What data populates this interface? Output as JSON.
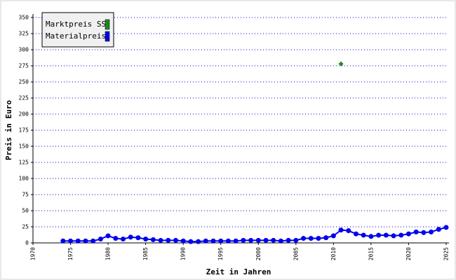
{
  "chart_data": {
    "type": "line",
    "x": [
      1974,
      1975,
      1976,
      1977,
      1978,
      1979,
      1980,
      1981,
      1982,
      1983,
      1984,
      1985,
      1986,
      1987,
      1988,
      1989,
      1990,
      1991,
      1992,
      1993,
      1994,
      1995,
      1996,
      1997,
      1998,
      1999,
      2000,
      2001,
      2002,
      2003,
      2004,
      2005,
      2006,
      2007,
      2008,
      2009,
      2010,
      2011,
      2012,
      2013,
      2014,
      2015,
      2016,
      2017,
      2018,
      2019,
      2020,
      2021,
      2022,
      2023,
      2024,
      2025
    ],
    "series": [
      {
        "name": "Marktpreis SS",
        "color": "#1a8a1a",
        "line": false,
        "marker": "diamond",
        "values": [
          null,
          null,
          null,
          null,
          null,
          null,
          null,
          null,
          null,
          null,
          null,
          null,
          null,
          null,
          null,
          null,
          null,
          null,
          null,
          null,
          null,
          null,
          null,
          null,
          null,
          null,
          null,
          null,
          null,
          null,
          null,
          null,
          null,
          null,
          null,
          null,
          null,
          278,
          null,
          null,
          null,
          null,
          null,
          null,
          null,
          null,
          null,
          null,
          null,
          null,
          null,
          null
        ]
      },
      {
        "name": "Materialpreis",
        "color": "#0000ee",
        "line": true,
        "marker": "circle",
        "values": [
          3,
          3,
          3,
          3,
          3,
          6,
          11,
          7,
          6,
          9,
          8,
          6,
          5,
          4,
          4,
          4,
          3,
          2,
          2,
          3,
          3,
          3,
          3,
          3,
          4,
          4,
          4,
          4,
          4,
          3,
          4,
          4,
          7,
          7,
          7,
          8,
          11,
          20,
          19,
          14,
          12,
          10,
          12,
          12,
          11,
          12,
          14,
          17,
          16,
          17,
          21,
          24
        ]
      }
    ],
    "xlabel": "Zeit in Jahren",
    "ylabel": "Preis in Euro",
    "xlim": [
      1970,
      2025
    ],
    "xticks": [
      1970,
      1975,
      1980,
      1985,
      1990,
      1995,
      2000,
      2005,
      2010,
      2015,
      2020,
      2025
    ],
    "ylim": [
      0,
      350
    ],
    "yticks": [
      0,
      25,
      50,
      75,
      100,
      125,
      150,
      175,
      200,
      225,
      250,
      275,
      300,
      325,
      350
    ],
    "grid": true,
    "legend": "top-left"
  }
}
